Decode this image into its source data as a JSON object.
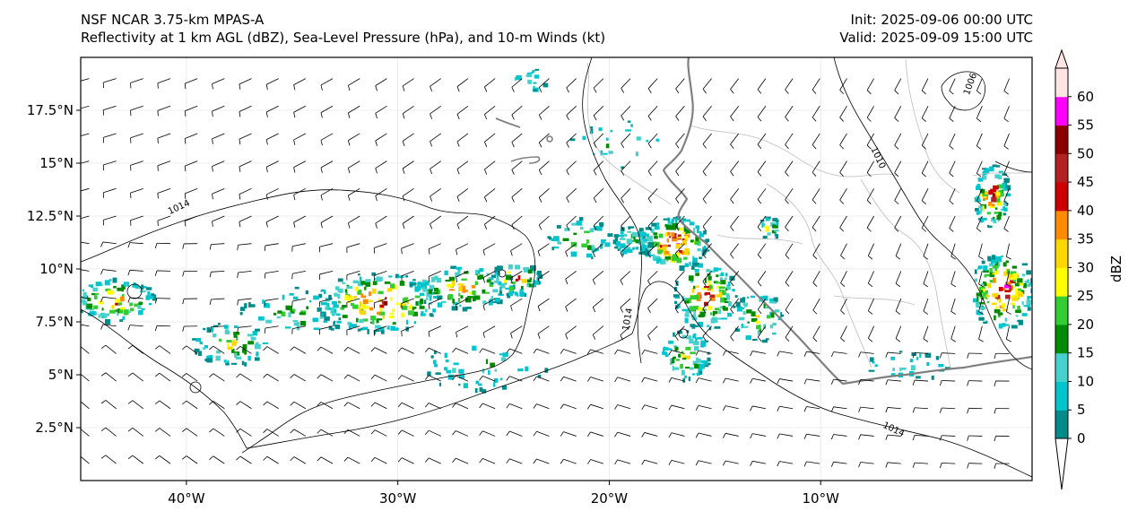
{
  "header": {
    "model": "NSF NCAR 3.75-km MPAS-A",
    "fields": "Reflectivity at 1 km AGL (dBZ), Sea-Level Pressure (hPa), and 10-m Winds (kt)",
    "init": "Init: 2025-09-06 00:00 UTC",
    "valid": "Valid: 2025-09-09 15:00 UTC"
  },
  "map": {
    "lon_range": [
      -45,
      0
    ],
    "lat_range": [
      0,
      20
    ],
    "lat_ticks": [
      {
        "value": 17.5,
        "label": "17.5°N"
      },
      {
        "value": 15,
        "label": "15°N"
      },
      {
        "value": 12.5,
        "label": "12.5°N"
      },
      {
        "value": 10,
        "label": "10°N"
      },
      {
        "value": 7.5,
        "label": "7.5°N"
      },
      {
        "value": 5,
        "label": "5°N"
      },
      {
        "value": 2.5,
        "label": "2.5°N"
      }
    ],
    "lon_ticks": [
      {
        "value": -40,
        "label": "40°W"
      },
      {
        "value": -30,
        "label": "30°W"
      },
      {
        "value": -20,
        "label": "20°W"
      },
      {
        "value": -10,
        "label": "10°W"
      }
    ],
    "isobar_labels": [
      {
        "text": "1014",
        "lon": -40.3,
        "lat": 12.8,
        "angle": -25
      },
      {
        "text": "1014",
        "lon": -19.0,
        "lat": 7.6,
        "angle": -80
      },
      {
        "text": "1014",
        "lon": -6.6,
        "lat": 2.3,
        "angle": 25
      },
      {
        "text": "1010",
        "lon": -7.4,
        "lat": 15.2,
        "angle": 65
      },
      {
        "text": "1006",
        "lon": -2.8,
        "lat": 18.7,
        "angle": -70
      }
    ]
  },
  "colorbar": {
    "label": "dBZ",
    "levels": [
      0,
      5,
      10,
      15,
      20,
      25,
      30,
      35,
      40,
      45,
      50,
      55,
      60
    ],
    "tick_labels": [
      "0",
      "5",
      "10",
      "15",
      "20",
      "25",
      "30",
      "35",
      "40",
      "45",
      "50",
      "55",
      "60"
    ],
    "colors": [
      "#008b8b",
      "#00c5cd",
      "#48d1cc",
      "#008b00",
      "#32cd32",
      "#ffff00",
      "#ffd700",
      "#ff8c00",
      "#cd0000",
      "#b22222",
      "#8b0000",
      "#ff00ff",
      "#ffe4e1"
    ]
  }
}
